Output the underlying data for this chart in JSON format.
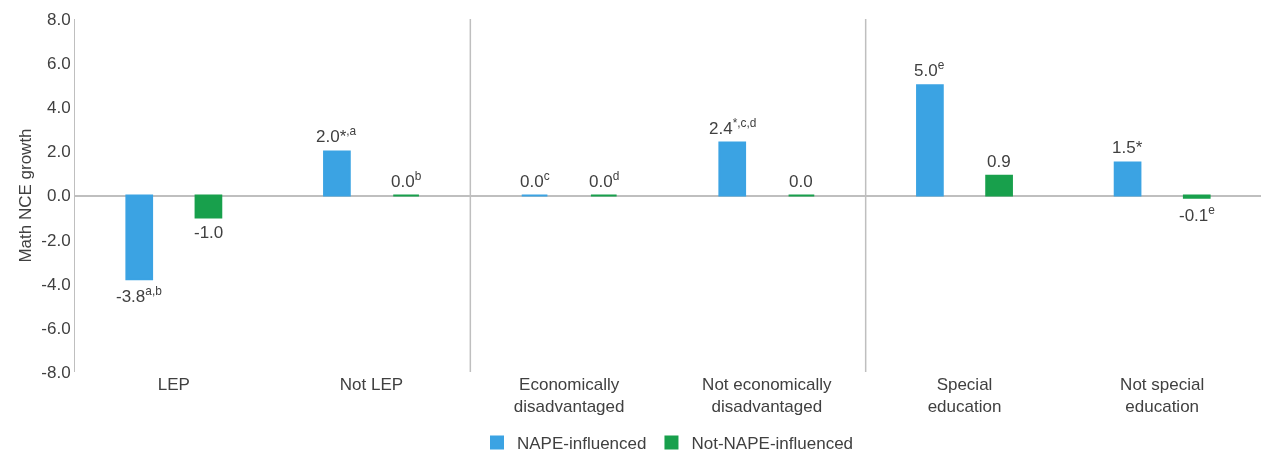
{
  "chart_data": {
    "type": "bar",
    "ylabel": "Math NCE growth",
    "categories": [
      "LEP",
      "Not LEP",
      "Economically disadvantaged",
      "Not economically disadvantaged",
      "Special education",
      "Not special education"
    ],
    "series": [
      {
        "name": "NAPE-influenced",
        "color": "#3ba3e3",
        "values": [
          -3.8,
          2.0,
          0.0,
          2.4,
          5.0,
          1.5
        ],
        "value_labels": [
          "-3.8$^{a,b}$",
          "2.0*$^{,a}$",
          "0.0$^{c}$",
          "2.4$^{*,c,d}$",
          "5.0$^{e}$",
          "1.5*"
        ]
      },
      {
        "name": "Not-NAPE-influenced",
        "color": "#18a04c",
        "values": [
          -1.0,
          0.0,
          0.0,
          0.0,
          0.9,
          -0.1
        ],
        "value_labels": [
          "-1.0",
          "0.0$^{b}$",
          "0.0$^{d}$",
          "0.0",
          "0.9",
          "-0.1$^{e}$"
        ]
      }
    ],
    "ylim": [
      -8,
      8
    ],
    "yticks": [
      {
        "value": -8,
        "label": "-8.0"
      },
      {
        "value": -6,
        "label": "-6.0"
      },
      {
        "value": -4,
        "label": "-4.0"
      },
      {
        "value": -2,
        "label": "-2.0"
      },
      {
        "value": 0,
        "label": "0.0"
      },
      {
        "value": 2,
        "label": "2.0"
      },
      {
        "value": 4,
        "label": "4.0"
      },
      {
        "value": 6,
        "label": "6.0"
      },
      {
        "value": 8,
        "label": "8.0"
      }
    ],
    "grid": false,
    "legend": "bottom"
  }
}
